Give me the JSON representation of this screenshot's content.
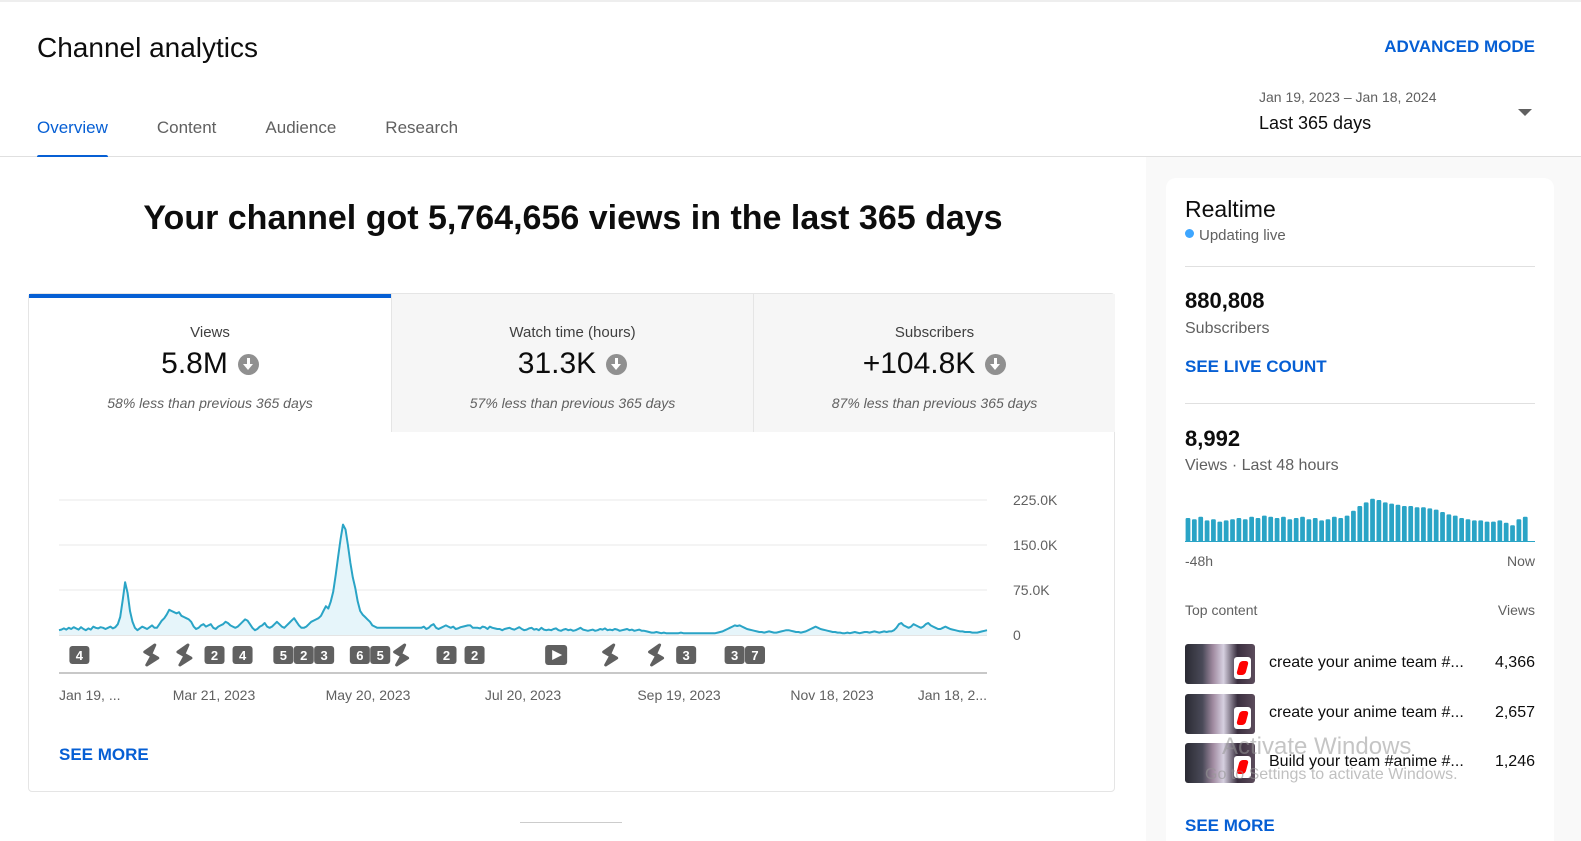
{
  "header": {
    "title": "Channel analytics",
    "advanced_mode": "ADVANCED MODE",
    "tabs": [
      {
        "label": "Overview",
        "active": true
      },
      {
        "label": "Content"
      },
      {
        "label": "Audience"
      },
      {
        "label": "Research"
      }
    ],
    "date_range": {
      "dates": "Jan 19, 2023 – Jan 18, 2024",
      "label": "Last 365 days"
    }
  },
  "main": {
    "headline": "Your channel got 5,764,656 views in the last 365 days",
    "metrics": [
      {
        "label": "Views",
        "value": "5.8M",
        "comparison": "58% less than previous 365 days",
        "active": true
      },
      {
        "label": "Watch time (hours)",
        "value": "31.3K",
        "comparison": "57% less than previous 365 days"
      },
      {
        "label": "Subscribers",
        "value": "+104.8K",
        "comparison": "87% less than previous 365 days"
      }
    ],
    "see_more": "SEE MORE"
  },
  "chart_data": {
    "type": "area",
    "series": [
      {
        "values": [
          8,
          9,
          11,
          9,
          12,
          10,
          13,
          11,
          9,
          13,
          10,
          8,
          11,
          9,
          14,
          12,
          11,
          13,
          12,
          10,
          12,
          14,
          11,
          13,
          18,
          30,
          58,
          88,
          70,
          40,
          22,
          12,
          8,
          11,
          14,
          12,
          10,
          13,
          16,
          12,
          12,
          18,
          24,
          28,
          34,
          42,
          40,
          38,
          36,
          38,
          32,
          30,
          28,
          26,
          22,
          14,
          10,
          12,
          16,
          18,
          14,
          16,
          18,
          12,
          10,
          14,
          16,
          18,
          22,
          20,
          16,
          14,
          12,
          14,
          18,
          22,
          26,
          24,
          18,
          12,
          8,
          10,
          14,
          16,
          20,
          14,
          12,
          14,
          18,
          22,
          18,
          14,
          12,
          16,
          20,
          24,
          28,
          22,
          16,
          12,
          12,
          14,
          18,
          22,
          24,
          26,
          28,
          32,
          40,
          48,
          44,
          56,
          72,
          100,
          130,
          160,
          184,
          176,
          150,
          120,
          96,
          78,
          56,
          40,
          34,
          30,
          26,
          22,
          16,
          14,
          12,
          12,
          12,
          12,
          12,
          12,
          12,
          12,
          12,
          12,
          12,
          12,
          12,
          12,
          12,
          12,
          12,
          12,
          12,
          14,
          10,
          12,
          16,
          18,
          12,
          10,
          12,
          14,
          16,
          14,
          12,
          14,
          10,
          11,
          13,
          14,
          15,
          16,
          16,
          12,
          12,
          12,
          11,
          14,
          13,
          10,
          14,
          12,
          11,
          10,
          10,
          8,
          10,
          11,
          12,
          10,
          9,
          11,
          13,
          10,
          8,
          9,
          11,
          12,
          9,
          10,
          8,
          12,
          9,
          8,
          9,
          8,
          10,
          11,
          8,
          7,
          9,
          10,
          8,
          9,
          7,
          8,
          10,
          12,
          9,
          8,
          7,
          8,
          9,
          7,
          8,
          10,
          9,
          11,
          8,
          9,
          8,
          10,
          9,
          7,
          8,
          9,
          10,
          8,
          9,
          7,
          8,
          9,
          7,
          7,
          6,
          5,
          4,
          4,
          5,
          4,
          3,
          4,
          3,
          3,
          3,
          3,
          3,
          3,
          4,
          3,
          3,
          3,
          3,
          3,
          3,
          3,
          3,
          3,
          3,
          3,
          3,
          3,
          3,
          4,
          5,
          6,
          8,
          10,
          12,
          14,
          16,
          15,
          16,
          14,
          12,
          10,
          9,
          8,
          7,
          6,
          5,
          5,
          4,
          5,
          6,
          5,
          4,
          4,
          5,
          6,
          7,
          8,
          8,
          7,
          6,
          5,
          5,
          4,
          5,
          6,
          8,
          10,
          12,
          14,
          12,
          10,
          9,
          8,
          7,
          6,
          5,
          5,
          4,
          4,
          3,
          3,
          4,
          3,
          4,
          5,
          4,
          3,
          4,
          5,
          5,
          4,
          5,
          6,
          5,
          4,
          5,
          6,
          5,
          6,
          6,
          8,
          12,
          18,
          20,
          16,
          14,
          12,
          14,
          18,
          16,
          14,
          12,
          14,
          18,
          20,
          16,
          14,
          12,
          10,
          10,
          12,
          14,
          12,
          10,
          9,
          8,
          7,
          6,
          6,
          5,
          5,
          5,
          4,
          4,
          4,
          5,
          6,
          7,
          8
        ]
      }
    ],
    "y_ticks": [
      "225.0K",
      "150.0K",
      "75.0K",
      "0"
    ],
    "x_ticks": [
      "Jan 19, ...",
      "Mar 21, 2023",
      "May 20, 2023",
      "Jul 20, 2023",
      "Sep 19, 2023",
      "Nov 18, 2023",
      "Jan 18, 2..."
    ],
    "markers": [
      {
        "kind": "num",
        "label": "4",
        "day": 8
      },
      {
        "kind": "short",
        "label": "",
        "day": 36
      },
      {
        "kind": "short",
        "label": "",
        "day": 49
      },
      {
        "kind": "num",
        "label": "2",
        "day": 61
      },
      {
        "kind": "num",
        "label": "4",
        "day": 72
      },
      {
        "kind": "num",
        "label": "5",
        "day": 88
      },
      {
        "kind": "num",
        "label": "2",
        "day": 96
      },
      {
        "kind": "num",
        "label": "3",
        "day": 104
      },
      {
        "kind": "num",
        "label": "6",
        "day": 118
      },
      {
        "kind": "num",
        "label": "5",
        "day": 126
      },
      {
        "kind": "short",
        "label": "",
        "day": 134
      },
      {
        "kind": "num",
        "label": "2",
        "day": 152
      },
      {
        "kind": "num",
        "label": "2",
        "day": 163
      },
      {
        "kind": "play",
        "label": "",
        "day": 195
      },
      {
        "kind": "short",
        "label": "",
        "day": 216
      },
      {
        "kind": "short",
        "label": "",
        "day": 234
      },
      {
        "kind": "num",
        "label": "3",
        "day": 246
      },
      {
        "kind": "num",
        "label": "3",
        "day": 265
      },
      {
        "kind": "num",
        "label": "7",
        "day": 273
      }
    ],
    "ylim": [
      0,
      225000
    ],
    "line_color": "#2aa4c6",
    "fill_color": "#e6f5fa"
  },
  "realtime": {
    "title": "Realtime",
    "status": "Updating live",
    "subscribers_value": "880,808",
    "subscribers_label": "Subscribers",
    "see_live_count": "SEE LIVE COUNT",
    "views_value": "8,992",
    "views_label": "Views · Last 48 hours",
    "bars": [
      20,
      19,
      21,
      18,
      19,
      17,
      18,
      19,
      20,
      19,
      21,
      20,
      22,
      21,
      20,
      21,
      19,
      20,
      21,
      19,
      20,
      18,
      19,
      21,
      20,
      22,
      26,
      30,
      33,
      36,
      35,
      33,
      32,
      31,
      30,
      30,
      29,
      29,
      28,
      27,
      25,
      23,
      22,
      20,
      19,
      18,
      18,
      17,
      17,
      18,
      16,
      14,
      19,
      21,
      0
    ],
    "bar_color": "#2aa4c6",
    "axis_start": "-48h",
    "axis_end": "Now",
    "top_content_label": "Top content",
    "views_col": "Views",
    "top_content": [
      {
        "title": "create your anime team #...",
        "views": "4,366"
      },
      {
        "title": "create your anime team #...",
        "views": "2,657"
      },
      {
        "title": "Build your team #anime #...",
        "views": "1,246"
      }
    ],
    "see_more": "SEE MORE"
  },
  "watermark": {
    "line1": "Activate Windows",
    "line2": "Go to Settings to activate Windows."
  }
}
